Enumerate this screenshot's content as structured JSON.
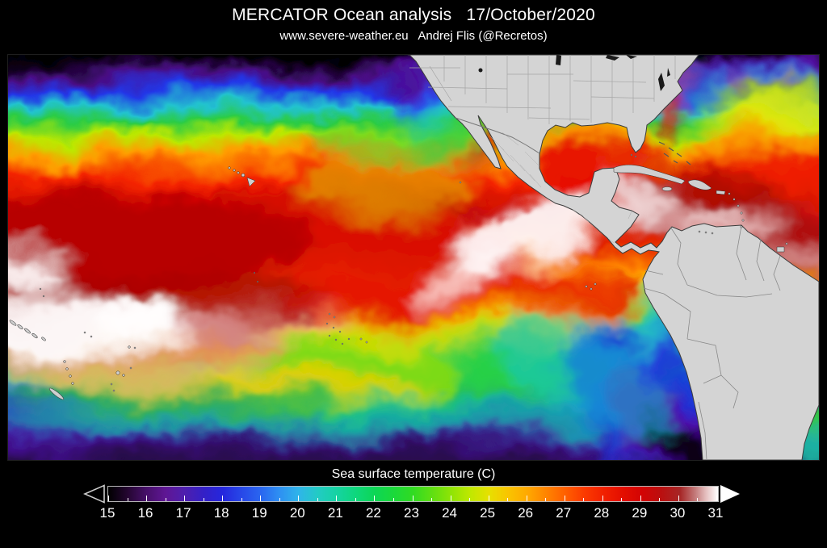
{
  "header": {
    "title": "MERCATOR Ocean analysis   17/October/2020",
    "subtitle": "www.severe-weather.eu   Andrej Flis (@Recretos)"
  },
  "map": {
    "type": "sea-surface-temperature-analysis",
    "regions_visible": [
      "North Pacific Ocean",
      "South Pacific Ocean",
      "North Atlantic Ocean",
      "Gulf of Mexico",
      "Caribbean Sea",
      "North America",
      "Central America",
      "South America",
      "Hawaii"
    ],
    "land_color": "#d4d4d4",
    "coast_color": "#3c3c3c",
    "state_border_color": "#a5a5a5",
    "country_border_color": "#8a8a8a",
    "background_color": "#000000"
  },
  "colorbar": {
    "label": "Sea surface temperature (C)",
    "unit": "C",
    "min": 15,
    "max": 31,
    "tick_labels": [
      "15",
      "16",
      "17",
      "18",
      "19",
      "20",
      "21",
      "22",
      "23",
      "24",
      "25",
      "26",
      "27",
      "28",
      "29",
      "30",
      "31"
    ],
    "out_of_range_arrows": {
      "left": "hollow-black",
      "right": "solid-white"
    },
    "gradient_stops": [
      [
        0,
        "#000000"
      ],
      [
        3.1,
        "#240630"
      ],
      [
        6.3,
        "#47106a"
      ],
      [
        9.4,
        "#5f1694"
      ],
      [
        12.5,
        "#4e1fae"
      ],
      [
        15.6,
        "#3420c6"
      ],
      [
        18.8,
        "#2527dd"
      ],
      [
        21.9,
        "#2748e8"
      ],
      [
        25,
        "#2a66f0"
      ],
      [
        28.1,
        "#2e90f2"
      ],
      [
        31.3,
        "#2fb5e9"
      ],
      [
        34.4,
        "#22cbc4"
      ],
      [
        37.5,
        "#15d3a2"
      ],
      [
        40.6,
        "#0ed77c"
      ],
      [
        43.8,
        "#0dd654"
      ],
      [
        46.9,
        "#1bd93a"
      ],
      [
        50,
        "#31db22"
      ],
      [
        53.1,
        "#5fdf12"
      ],
      [
        56.3,
        "#90e405"
      ],
      [
        59.4,
        "#c0e800"
      ],
      [
        62.5,
        "#e7e000"
      ],
      [
        65.6,
        "#f9c400"
      ],
      [
        68.8,
        "#ffa800"
      ],
      [
        71.9,
        "#ff8300"
      ],
      [
        75,
        "#ff5f00"
      ],
      [
        78.1,
        "#fb3a00"
      ],
      [
        81.3,
        "#f12000"
      ],
      [
        84.4,
        "#e30e00"
      ],
      [
        87.5,
        "#d30404"
      ],
      [
        90.6,
        "#bb0f0f"
      ],
      [
        93.8,
        "#a62727"
      ],
      [
        96.3,
        "#c47c7c"
      ],
      [
        98,
        "#e4bebe"
      ],
      [
        100,
        "#ffffff"
      ]
    ]
  }
}
